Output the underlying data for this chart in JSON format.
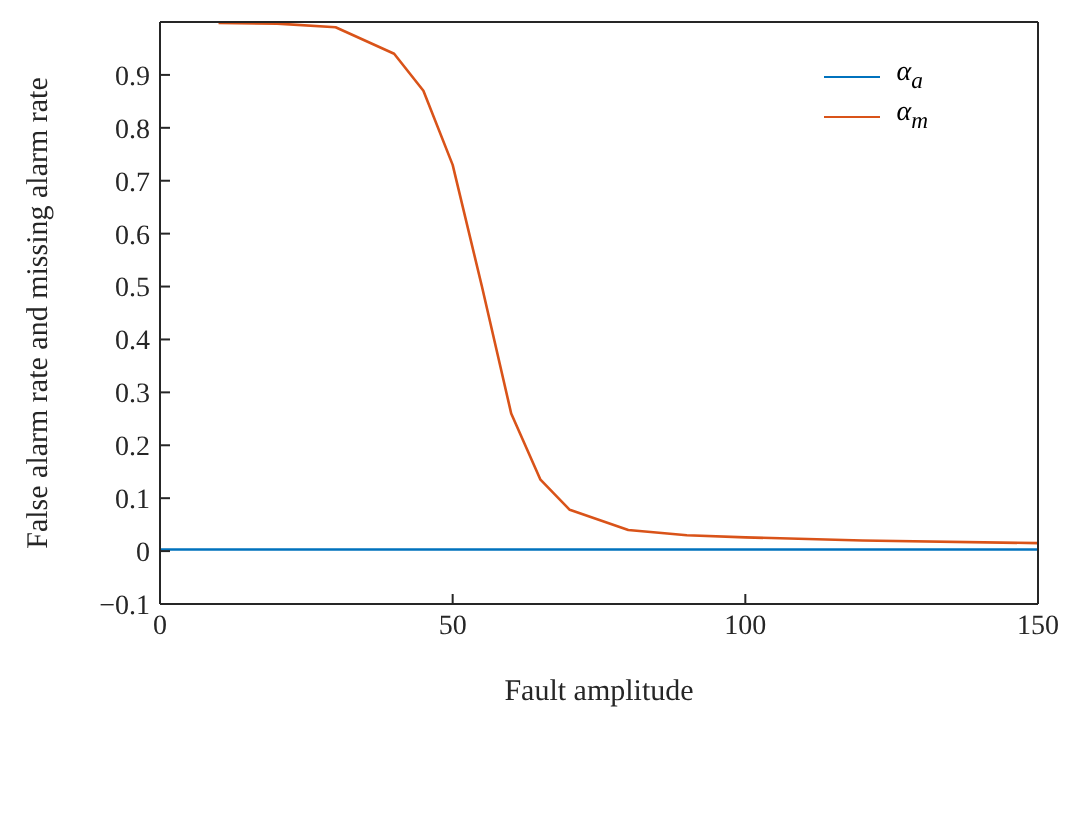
{
  "chart_data": {
    "type": "line",
    "xlabel": "Fault amplitude",
    "ylabel": "False alarm rate and missing alarm rate",
    "series": [
      {
        "name": "α$_{a}$",
        "color": "#0072bd",
        "x": [
          0,
          150
        ],
        "values": [
          0.003,
          0.003
        ]
      },
      {
        "name": "α$_{m}$",
        "color": "#d95319",
        "x": [
          10,
          20,
          30,
          40,
          45,
          50,
          55,
          60,
          65,
          70,
          80,
          90,
          100,
          120,
          150
        ],
        "values": [
          0.998,
          0.997,
          0.99,
          0.94,
          0.87,
          0.73,
          0.5,
          0.26,
          0.135,
          0.078,
          0.04,
          0.03,
          0.026,
          0.02,
          0.015
        ]
      }
    ],
    "xlim": [
      0,
      150
    ],
    "xticks": [
      0,
      50,
      100,
      150
    ],
    "ylim": [
      -0.1,
      1
    ],
    "yticks": [
      {
        "value": -0.1,
        "label": "−0.1"
      },
      0,
      0.1,
      0.2,
      0.3,
      0.4,
      0.5,
      0.6,
      0.7,
      0.8,
      0.9
    ],
    "legend": "top right",
    "grid": false,
    "marker": "none",
    "line_style": "solid"
  }
}
